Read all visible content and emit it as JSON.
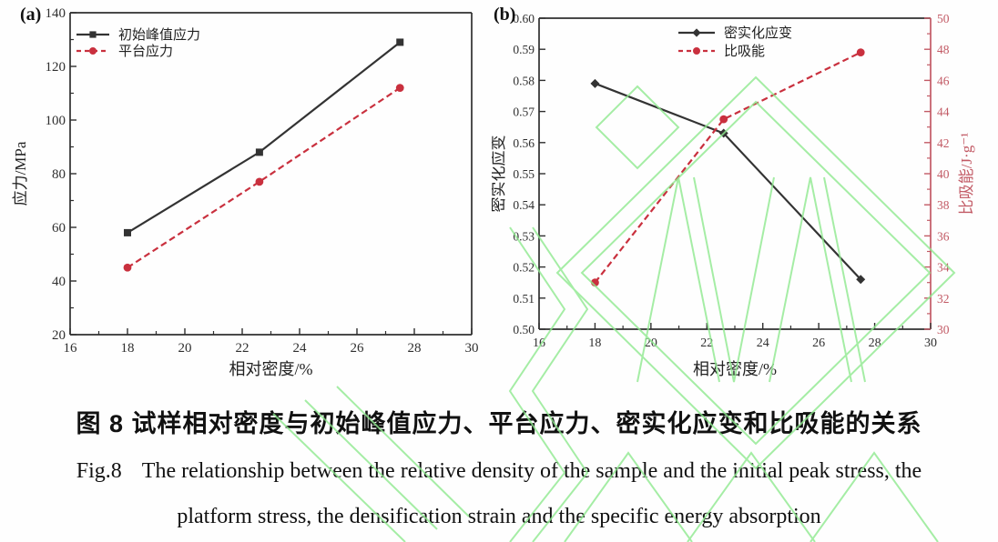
{
  "captions": {
    "zh": "图 8 试样相对密度与初始峰值应力、平台应力、密实化应变和比吸能的关系",
    "fig_label": "Fig.8",
    "en_line1": "The relationship between the relative density of the sample and the initial peak stress, the",
    "en_line2": "platform stress, the densification strain and the specific energy absorption"
  },
  "colors": {
    "axis_black": "#2f2f2f",
    "series_black": "#333333",
    "series_red": "#c9303e",
    "right_axis_red": "#c25a65",
    "tick_text": "#2f2f2f",
    "watermark_green": "#8fe98f"
  },
  "chart_data": [
    {
      "type": "line",
      "panel_label": "(a)",
      "x": [
        18,
        22.6,
        27.5
      ],
      "xlabel": "相对密度/%",
      "ylabel": "应力/MPa",
      "xlim": [
        16,
        30
      ],
      "xtick_step": 2,
      "x_minor_step": 1,
      "x_decimals": 0,
      "ylim": [
        20,
        140
      ],
      "ytick_step": 20,
      "y_minor_step": 10,
      "y_decimals": 0,
      "grid": false,
      "legend_position": "top-left",
      "series": [
        {
          "name": "初始峰值应力",
          "values": [
            58,
            88,
            129
          ],
          "color": "#333333",
          "marker": "square",
          "dash": null,
          "axis": "left"
        },
        {
          "name": "平台应力",
          "values": [
            45,
            77,
            112
          ],
          "color": "#c9303e",
          "marker": "circle",
          "dash": "7 4",
          "axis": "left"
        }
      ]
    },
    {
      "type": "line",
      "panel_label": "(b)",
      "x": [
        18,
        22.6,
        27.5
      ],
      "xlabel": "相对密度/%",
      "ylabel": "密实化应变",
      "ylabel_right": "比吸能/J·g⁻¹",
      "xlim": [
        16,
        30
      ],
      "xtick_step": 2,
      "x_minor_step": 1,
      "x_decimals": 0,
      "ylim": [
        0.5,
        0.6
      ],
      "ytick_step": 0.01,
      "y_minor_step": null,
      "y_decimals": 2,
      "ylim_right": [
        30,
        50
      ],
      "ytick_step_right": 2,
      "y_minor_step_right": 1,
      "y_right_decimals": 0,
      "grid": false,
      "legend_position": "top-center",
      "series": [
        {
          "name": "密实化应变",
          "values": [
            0.579,
            0.563,
            0.516
          ],
          "color": "#333333",
          "marker": "diamond",
          "dash": null,
          "axis": "left"
        },
        {
          "name": "比吸能",
          "values": [
            33,
            43.5,
            47.8
          ],
          "color": "#c9303e",
          "marker": "circle",
          "dash": "7 4",
          "axis": "right"
        }
      ]
    }
  ]
}
